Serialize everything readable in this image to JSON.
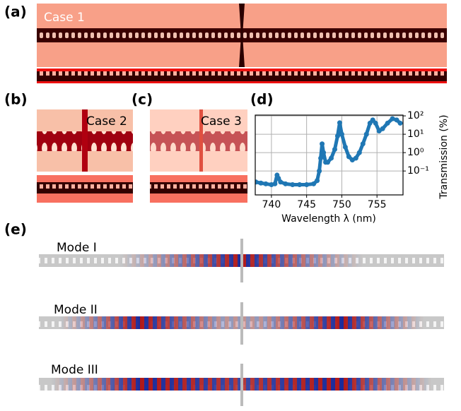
{
  "panels": {
    "a": {
      "label": "(a)",
      "caption": "Case 1"
    },
    "b": {
      "label": "(b)",
      "caption": "Case 2"
    },
    "c": {
      "label": "(c)",
      "caption": "Case 3"
    },
    "e": {
      "label": "(e)",
      "modes": [
        "Mode I",
        "Mode II",
        "Mode III"
      ]
    }
  },
  "chart_data": {
    "type": "scatter",
    "label": "(d)",
    "xlabel": "Wavelength λ (nm)",
    "ylabel": "Transmission (%)",
    "color": "#1f77b4",
    "log_y": true,
    "grid": true,
    "xlim": [
      737.7,
      758.7
    ],
    "ylim": [
      0.005,
      110
    ],
    "xticks": [
      740,
      745,
      750,
      755
    ],
    "yticks": [
      {
        "value": 0.1,
        "label": "10⁻¹"
      },
      {
        "value": 1,
        "label": "10⁰"
      },
      {
        "value": 10,
        "label": "10¹"
      },
      {
        "value": 100,
        "label": "10²"
      }
    ],
    "x": [
      737.8,
      738.5,
      739.2,
      740,
      740.5,
      740.8,
      741,
      741.3,
      742,
      743,
      744,
      745,
      746,
      746.5,
      746.8,
      747,
      747.2,
      747.4,
      747.7,
      748,
      748.5,
      749,
      749.4,
      749.7,
      750,
      750.5,
      751,
      751.5,
      752,
      752.5,
      753,
      753.5,
      754,
      754.4,
      754.8,
      755.3,
      755.8,
      756.5,
      757.2,
      757.8,
      758.3
    ],
    "values": [
      0.025,
      0.022,
      0.02,
      0.018,
      0.02,
      0.06,
      0.04,
      0.025,
      0.02,
      0.018,
      0.018,
      0.018,
      0.02,
      0.03,
      0.1,
      0.5,
      3,
      1,
      0.3,
      0.3,
      0.5,
      1.5,
      8,
      42,
      10,
      2,
      0.6,
      0.4,
      0.5,
      1,
      3,
      10,
      40,
      60,
      40,
      15,
      20,
      40,
      70,
      60,
      40
    ]
  }
}
